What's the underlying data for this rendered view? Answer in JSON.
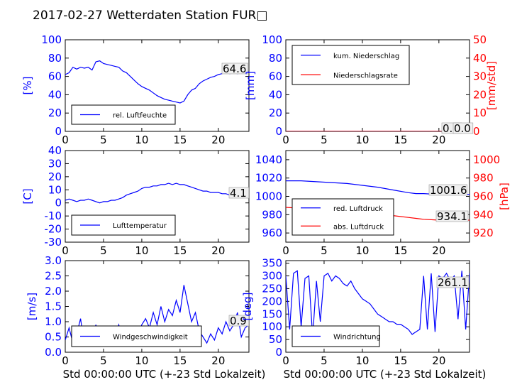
{
  "figure": {
    "title": "2017-02-27 Wetterdaten Station FUR□",
    "xlabel": "Std 00:00:00 UTC (+-23 Std Lokalzeit)"
  },
  "colors": {
    "left_axis": "#0000ff",
    "right_axis": "#ff0000",
    "frame": "#000000"
  },
  "chart_data": [
    {
      "id": "humidity",
      "type": "line",
      "ylabel": "[%]",
      "xlim": [
        0,
        24
      ],
      "ylim": [
        0,
        100
      ],
      "xticks": [
        0,
        5,
        10,
        15,
        20
      ],
      "yticks": [
        0,
        20,
        40,
        60,
        80,
        100
      ],
      "series": [
        {
          "name": "rel. Luftfeuchte",
          "color": "#0000ff",
          "x": [
            0,
            0.5,
            1,
            1.5,
            2,
            2.5,
            3,
            3.5,
            4,
            4.5,
            5,
            5.5,
            6,
            6.5,
            7,
            7.5,
            8,
            8.5,
            9,
            9.5,
            10,
            10.5,
            11,
            11.5,
            12,
            12.5,
            13,
            13.5,
            14,
            14.5,
            15,
            15.5,
            16,
            16.5,
            17,
            17.5,
            18,
            18.5,
            19,
            19.5,
            20,
            20.5,
            21,
            21.5,
            22,
            22.5,
            23,
            23.5,
            24
          ],
          "values": [
            62,
            64,
            70,
            68,
            70,
            69,
            70,
            67,
            76,
            77,
            74,
            73,
            72,
            71,
            70,
            66,
            64,
            60,
            56,
            52,
            49,
            47,
            45,
            42,
            39,
            37,
            35,
            34,
            33,
            32,
            31,
            33,
            40,
            45,
            47,
            52,
            55,
            57,
            59,
            60,
            62,
            63,
            64,
            63,
            64,
            63,
            64,
            64,
            65
          ]
        }
      ],
      "annotation": "64.6",
      "legend_loc": "lower-left"
    },
    {
      "id": "precipitation",
      "type": "line",
      "ylabel": "[mm]",
      "ylabel_right": "[mm/std]",
      "xlim": [
        0,
        24
      ],
      "ylim": [
        0,
        100
      ],
      "ylim_right": [
        0,
        50
      ],
      "xticks": [
        0,
        5,
        10,
        15,
        20
      ],
      "yticks": [
        0,
        20,
        40,
        60,
        80,
        100
      ],
      "yticks_right": [
        0,
        10,
        20,
        30,
        40,
        50
      ],
      "series": [
        {
          "name": "kum. Niederschlag",
          "color": "#0000ff",
          "axis": "left",
          "x": [
            0,
            24
          ],
          "values": [
            0,
            0
          ]
        },
        {
          "name": "Niederschlagsrate",
          "color": "#ff0000",
          "axis": "right",
          "x": [
            0,
            24
          ],
          "values": [
            0,
            0
          ]
        }
      ],
      "annotations": [
        "0.0",
        "0.0"
      ],
      "legend_loc": "upper-left"
    },
    {
      "id": "temperature",
      "type": "line",
      "ylabel": "[C]",
      "xlim": [
        0,
        24
      ],
      "ylim": [
        -30,
        40
      ],
      "xticks": [
        0,
        5,
        10,
        15,
        20
      ],
      "yticks": [
        -30,
        -20,
        -10,
        0,
        10,
        20,
        30,
        40
      ],
      "series": [
        {
          "name": "Lufttemperatur",
          "color": "#0000ff",
          "x": [
            0,
            0.5,
            1,
            1.5,
            2,
            2.5,
            3,
            3.5,
            4,
            4.5,
            5,
            5.5,
            6,
            6.5,
            7,
            7.5,
            8,
            8.5,
            9,
            9.5,
            10,
            10.5,
            11,
            11.5,
            12,
            12.5,
            13,
            13.5,
            14,
            14.5,
            15,
            15.5,
            16,
            16.5,
            17,
            17.5,
            18,
            18.5,
            19,
            19.5,
            20,
            20.5,
            21,
            21.5,
            22,
            22.5,
            23,
            23.5,
            24
          ],
          "values": [
            2,
            3,
            2,
            1,
            2,
            2,
            3,
            2,
            1,
            0,
            1,
            1,
            2,
            2,
            3,
            4,
            6,
            7,
            8,
            9,
            11,
            12,
            12,
            13,
            13,
            14,
            14,
            15,
            14,
            15,
            14,
            14,
            13,
            12,
            11,
            10,
            9,
            9,
            8,
            8,
            8,
            7,
            7,
            6,
            5,
            5,
            5,
            4,
            4
          ]
        }
      ],
      "annotation": "4.1",
      "legend_loc": "lower-left"
    },
    {
      "id": "pressure",
      "type": "line",
      "ylabel_right": "[hPa]",
      "xlim": [
        0,
        24
      ],
      "ylim": [
        950,
        1050
      ],
      "ylim_right": [
        910,
        1010
      ],
      "xticks": [
        0,
        5,
        10,
        15,
        20
      ],
      "yticks": [
        960,
        980,
        1000,
        1020,
        1040
      ],
      "yticks_right": [
        920,
        940,
        960,
        980,
        1000
      ],
      "series": [
        {
          "name": "red. Luftdruck",
          "color": "#0000ff",
          "axis": "left",
          "x": [
            0,
            2,
            4,
            6,
            8,
            10,
            12,
            14,
            16,
            17,
            18,
            20,
            22,
            24
          ],
          "values": [
            1017,
            1017,
            1016,
            1015,
            1014,
            1012,
            1010,
            1007,
            1004,
            1003,
            1003,
            1002,
            1002,
            1002
          ]
        },
        {
          "name": "abs. Luftdruck",
          "color": "#ff0000",
          "axis": "right",
          "x": [
            0,
            2,
            4,
            6,
            8,
            10,
            12,
            14,
            16,
            17,
            18,
            20,
            22,
            24
          ],
          "values": [
            948,
            947,
            946,
            945,
            944,
            943,
            941,
            939,
            937,
            936,
            935,
            934,
            934,
            934
          ]
        }
      ],
      "annotations": [
        "1001.6",
        "934.1"
      ],
      "legend_loc": "lower-left"
    },
    {
      "id": "windspeed",
      "type": "line",
      "ylabel": "[m/s]",
      "xlabel": "Std 00:00:00 UTC (+-23 Std Lokalzeit)",
      "xlim": [
        0,
        24
      ],
      "ylim": [
        0,
        3
      ],
      "xticks": [
        0,
        5,
        10,
        15,
        20
      ],
      "yticks": [
        0.0,
        0.5,
        1.0,
        1.5,
        2.0,
        2.5,
        3.0
      ],
      "series": [
        {
          "name": "Windgeschwindigkeit",
          "color": "#0000ff",
          "x": [
            0,
            0.5,
            1,
            1.5,
            2,
            2.5,
            3,
            3.5,
            4,
            4.5,
            5,
            5.5,
            6,
            6.5,
            7,
            7.5,
            8,
            8.5,
            9,
            9.5,
            10,
            10.5,
            11,
            11.5,
            12,
            12.5,
            13,
            13.5,
            14,
            14.5,
            15,
            15.5,
            16,
            16.5,
            17,
            17.5,
            18,
            18.5,
            19,
            19.5,
            20,
            20.5,
            21,
            21.5,
            22,
            22.5,
            23,
            23.5,
            24
          ],
          "values": [
            0.4,
            0.8,
            0.3,
            0.6,
            1.1,
            0.2,
            0.7,
            0.4,
            0.9,
            0.3,
            0.5,
            0.8,
            0.6,
            0.5,
            0.9,
            0.4,
            0.8,
            0.5,
            0.7,
            0.6,
            0.9,
            1.1,
            0.8,
            1.3,
            0.9,
            1.5,
            1.0,
            1.4,
            1.2,
            1.7,
            1.3,
            2.2,
            1.6,
            1.0,
            1.3,
            0.7,
            0.5,
            0.3,
            0.6,
            0.4,
            0.8,
            0.6,
            1.0,
            0.7,
            0.9,
            1.3,
            0.5,
            0.8,
            0.9
          ]
        }
      ],
      "annotation": "0.9",
      "legend_loc": "lower-left"
    },
    {
      "id": "winddirection",
      "type": "line",
      "ylabel": "[deg]",
      "xlabel": "Std 00:00:00 UTC (+-23 Std Lokalzeit)",
      "xlim": [
        0,
        24
      ],
      "ylim": [
        0,
        360
      ],
      "xticks": [
        0,
        5,
        10,
        15,
        20
      ],
      "yticks": [
        0,
        50,
        100,
        150,
        200,
        250,
        300,
        350
      ],
      "series": [
        {
          "name": "Windrichtung",
          "color": "#0000ff",
          "x": [
            0,
            0.5,
            1,
            1.5,
            2,
            2.5,
            3,
            3.5,
            4,
            4.5,
            5,
            5.5,
            6,
            6.5,
            7,
            7.5,
            8,
            8.5,
            9,
            9.5,
            10,
            10.5,
            11,
            11.5,
            12,
            12.5,
            13,
            13.5,
            14,
            14.5,
            15,
            15.5,
            16,
            16.5,
            17,
            17.5,
            18,
            18.5,
            19,
            19.5,
            20,
            20.5,
            21,
            21.5,
            22,
            22.5,
            23,
            23.5,
            24
          ],
          "values": [
            300,
            90,
            310,
            320,
            100,
            290,
            300,
            60,
            280,
            120,
            300,
            310,
            280,
            300,
            290,
            270,
            260,
            280,
            250,
            230,
            210,
            200,
            190,
            170,
            150,
            140,
            130,
            120,
            120,
            110,
            110,
            100,
            90,
            70,
            80,
            90,
            300,
            90,
            310,
            80,
            300,
            290,
            310,
            280,
            300,
            130,
            320,
            90,
            310
          ]
        }
      ],
      "annotation": "261.1",
      "legend_loc": "lower-left"
    }
  ]
}
